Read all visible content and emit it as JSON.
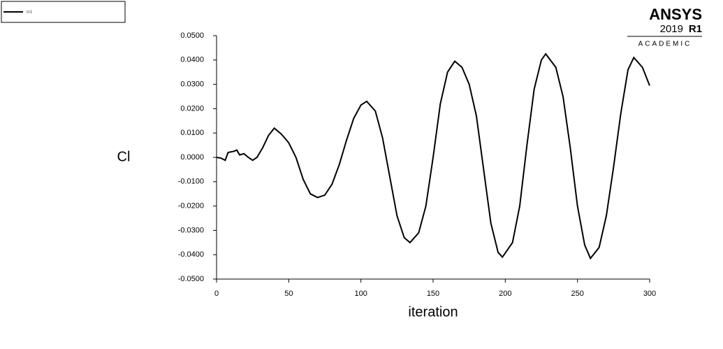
{
  "chart_data": {
    "type": "line",
    "x_label": "iteration",
    "y_label": "Cl",
    "xlim": [
      0,
      300
    ],
    "xticks": [
      0,
      50,
      100,
      150,
      200,
      250,
      300
    ],
    "ylim": [
      -0.05,
      0.05
    ],
    "yticks": [
      {
        "value": -0.05,
        "label": "-0.0500"
      },
      {
        "value": -0.04,
        "label": "-0.0400"
      },
      {
        "value": -0.03,
        "label": "-0.0300"
      },
      {
        "value": -0.02,
        "label": "-0.0200"
      },
      {
        "value": -0.01,
        "label": "-0.0100"
      },
      {
        "value": 0,
        "label": "0.0000"
      },
      {
        "value": 0.01,
        "label": "0.0100"
      },
      {
        "value": 0.02,
        "label": "0.0200"
      },
      {
        "value": 0.03,
        "label": "0.0300"
      },
      {
        "value": 0.04,
        "label": "0.0400"
      },
      {
        "value": 0.05,
        "label": "0.0500"
      }
    ],
    "x": [
      0,
      3,
      6,
      8,
      12,
      14,
      16,
      19,
      22,
      25,
      28,
      32,
      36,
      40,
      45,
      50,
      55,
      60,
      65,
      70,
      75,
      80,
      85,
      90,
      95,
      100,
      104,
      110,
      115,
      120,
      125,
      130,
      134,
      140,
      145,
      150,
      155,
      160,
      165,
      170,
      175,
      180,
      185,
      190,
      195,
      198,
      205,
      210,
      215,
      220,
      225,
      228,
      235,
      240,
      245,
      250,
      255,
      259,
      265,
      270,
      275,
      280,
      285,
      289,
      295,
      300
    ],
    "series": [
      {
        "name": "cl-1",
        "color": "#000000",
        "values": [
          0.0,
          -0.0003,
          -0.0012,
          0.002,
          0.0025,
          0.003,
          0.001,
          0.0015,
          0.0,
          -0.0012,
          0.0,
          0.004,
          0.009,
          0.012,
          0.0095,
          0.006,
          0.0,
          -0.009,
          -0.015,
          -0.0165,
          -0.0155,
          -0.011,
          -0.003,
          0.007,
          0.016,
          0.0215,
          0.023,
          0.019,
          0.008,
          -0.008,
          -0.024,
          -0.033,
          -0.035,
          -0.031,
          -0.02,
          0.0,
          0.022,
          0.035,
          0.0395,
          0.037,
          0.03,
          0.017,
          -0.005,
          -0.027,
          -0.039,
          -0.041,
          -0.035,
          -0.02,
          0.005,
          0.028,
          0.04,
          0.0425,
          0.037,
          0.025,
          0.004,
          -0.02,
          -0.036,
          -0.0415,
          -0.037,
          -0.024,
          -0.004,
          0.018,
          0.036,
          0.041,
          0.037,
          0.0295
        ]
      }
    ]
  },
  "branding": {
    "company": "ANSYS",
    "version": "2019",
    "release": "R1",
    "edition": "ACADEMIC"
  }
}
